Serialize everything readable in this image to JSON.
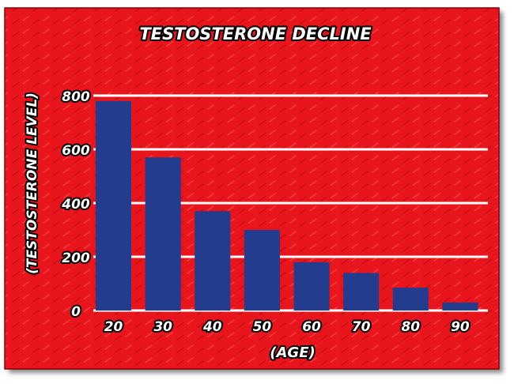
{
  "chart_data": {
    "type": "bar",
    "title": "TESTOSTERONE DECLINE",
    "xlabel": "(AGE)",
    "ylabel": "(TESTOSTERONE LEVEL)",
    "categories": [
      "20",
      "30",
      "40",
      "50",
      "60",
      "70",
      "80",
      "90"
    ],
    "values": [
      780,
      570,
      370,
      300,
      180,
      140,
      85,
      30
    ],
    "ylim": [
      0,
      800
    ],
    "yticks": [
      0,
      200,
      400,
      600,
      800
    ],
    "ytick_labels": [
      "0",
      "200",
      "400",
      "600",
      "800"
    ],
    "grid": true,
    "legend": "none",
    "colors": {
      "background": "#e8141a",
      "bar": "#243c8e",
      "gridline": "#ffffff",
      "text_fill": "#ffffff",
      "text_outline": "#000000"
    }
  }
}
